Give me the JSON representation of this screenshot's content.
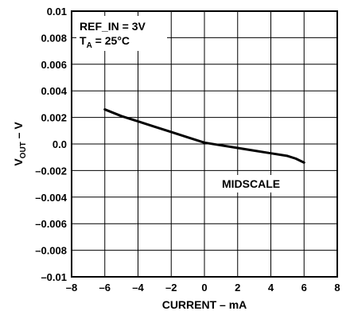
{
  "chart_data": {
    "type": "line",
    "xlabel": "CURRENT – mA",
    "ylabel_main": "V",
    "ylabel_sub": "OUT",
    "ylabel_suffix": " – V",
    "xlim": [
      -8,
      8
    ],
    "ylim": [
      -0.01,
      0.01
    ],
    "x_ticks": [
      -8,
      -6,
      -4,
      -2,
      0,
      2,
      4,
      6,
      8
    ],
    "x_tick_labels": [
      "–8",
      "–6",
      "–4",
      "–2",
      "0",
      "2",
      "4",
      "6",
      "8"
    ],
    "y_ticks": [
      0.01,
      0.008,
      0.006,
      0.004,
      0.002,
      0.0,
      -0.002,
      -0.004,
      -0.006,
      -0.008,
      -0.01
    ],
    "y_tick_labels": [
      "0.01",
      "0.008",
      "0.006",
      "0.004",
      "0.002",
      "0.0",
      "–0.002",
      "–0.004",
      "–0.006",
      "–0.008",
      "–0.01"
    ],
    "grid": true,
    "annotations": {
      "ref_in": "REF_IN = 3V",
      "ta_main": "T",
      "ta_sub": "A",
      "ta_rest": " = 25°C",
      "curve_label": "MIDSCALE"
    },
    "series": [
      {
        "x": [
          -6,
          -5,
          -4,
          -3,
          -2,
          -1,
          0,
          1,
          2,
          3,
          4,
          5,
          5.5,
          6
        ],
        "y": [
          0.0026,
          0.0021,
          0.0017,
          0.0013,
          0.0009,
          0.0005,
          0.0001,
          -0.0001,
          -0.0003,
          -0.0005,
          -0.0007,
          -0.0009,
          -0.0011,
          -0.0014
        ]
      }
    ]
  }
}
